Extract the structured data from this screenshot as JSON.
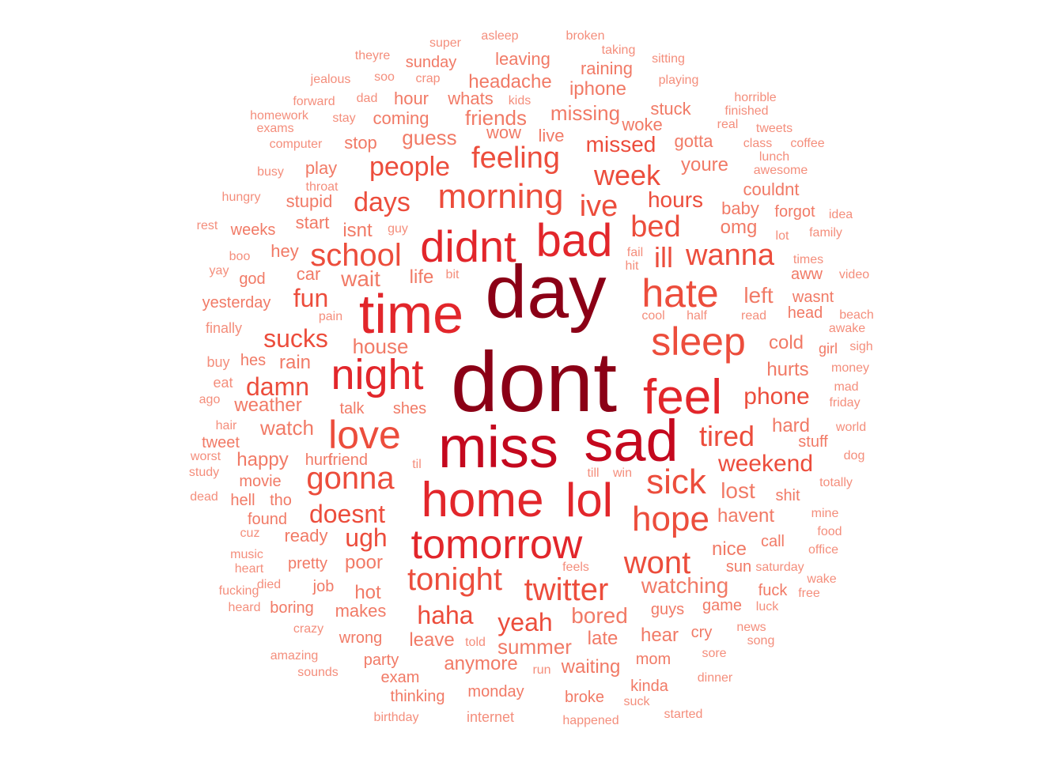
{
  "palette": {
    "t1": "#8b0016",
    "t2": "#c4081e",
    "t3": "#e2262b",
    "t4": "#ec4d3c",
    "t5": "#f17a66",
    "t6": "#f48e7c"
  },
  "words": [
    {
      "text": "dont",
      "tier": "t1"
    },
    {
      "text": "day",
      "tier": "t1"
    },
    {
      "text": "miss",
      "tier": "t2"
    },
    {
      "text": "sad",
      "tier": "t2"
    },
    {
      "text": "time",
      "tier": "t3"
    },
    {
      "text": "home",
      "tier": "t3"
    },
    {
      "text": "didnt",
      "tier": "t3"
    },
    {
      "text": "bad",
      "tier": "t3"
    },
    {
      "text": "night",
      "tier": "t3"
    },
    {
      "text": "feel",
      "tier": "t3"
    },
    {
      "text": "lol",
      "tier": "t3"
    },
    {
      "text": "tomorrow",
      "tier": "t3"
    },
    {
      "text": "love",
      "tier": "t4"
    },
    {
      "text": "hate",
      "tier": "t4"
    },
    {
      "text": "sleep",
      "tier": "t4"
    },
    {
      "text": "morning",
      "tier": "t4"
    },
    {
      "text": "sick",
      "tier": "t4"
    },
    {
      "text": "hope",
      "tier": "t4"
    },
    {
      "text": "gonna",
      "tier": "t4"
    },
    {
      "text": "school",
      "tier": "t4"
    },
    {
      "text": "twitter",
      "tier": "t4"
    },
    {
      "text": "tonight",
      "tier": "t4"
    },
    {
      "text": "wont",
      "tier": "t4"
    },
    {
      "text": "feeling",
      "tier": "t4"
    },
    {
      "text": "week",
      "tier": "t4"
    },
    {
      "text": "ive",
      "tier": "t4"
    },
    {
      "text": "wanna",
      "tier": "t4"
    },
    {
      "text": "ill",
      "tier": "t4"
    },
    {
      "text": "tired",
      "tier": "t4"
    },
    {
      "text": "people",
      "tier": "t4"
    },
    {
      "text": "days",
      "tier": "t4"
    },
    {
      "text": "bed",
      "tier": "t4"
    },
    {
      "text": "haha",
      "tier": "t4"
    },
    {
      "text": "yeah",
      "tier": "t4"
    },
    {
      "text": "doesnt",
      "tier": "t4"
    },
    {
      "text": "sucks",
      "tier": "t4"
    },
    {
      "text": "damn",
      "tier": "t4"
    },
    {
      "text": "ugh",
      "tier": "t4"
    },
    {
      "text": "fun",
      "tier": "t4"
    },
    {
      "text": "weekend",
      "tier": "t4"
    },
    {
      "text": "phone",
      "tier": "t4"
    },
    {
      "text": "missed",
      "tier": "t4"
    },
    {
      "text": "hours",
      "tier": "t4"
    },
    {
      "text": "watching",
      "tier": "t5"
    },
    {
      "text": "bored",
      "tier": "t5"
    },
    {
      "text": "lost",
      "tier": "t5"
    },
    {
      "text": "left",
      "tier": "t5"
    },
    {
      "text": "watch",
      "tier": "t5"
    },
    {
      "text": "summer",
      "tier": "t5"
    },
    {
      "text": "guess",
      "tier": "t5"
    },
    {
      "text": "missing",
      "tier": "t5"
    },
    {
      "text": "friends",
      "tier": "t5"
    },
    {
      "text": "headache",
      "tier": "t5"
    },
    {
      "text": "iphone",
      "tier": "t5"
    },
    {
      "text": "wait",
      "tier": "t5"
    },
    {
      "text": "isnt",
      "tier": "t5"
    },
    {
      "text": "rain",
      "tier": "t5"
    },
    {
      "text": "house",
      "tier": "t5"
    },
    {
      "text": "hurts",
      "tier": "t5"
    },
    {
      "text": "cold",
      "tier": "t5"
    },
    {
      "text": "omg",
      "tier": "t5"
    },
    {
      "text": "youre",
      "tier": "t5"
    },
    {
      "text": "havent",
      "tier": "t5"
    },
    {
      "text": "nice",
      "tier": "t5"
    },
    {
      "text": "hard",
      "tier": "t5"
    },
    {
      "text": "late",
      "tier": "t5"
    },
    {
      "text": "leave",
      "tier": "t5"
    },
    {
      "text": "anymore",
      "tier": "t5"
    },
    {
      "text": "waiting",
      "tier": "t5"
    },
    {
      "text": "hear",
      "tier": "t5"
    },
    {
      "text": "guys",
      "tier": "t5"
    },
    {
      "text": "makes",
      "tier": "t5"
    },
    {
      "text": "hot",
      "tier": "t5"
    },
    {
      "text": "poor",
      "tier": "t5"
    },
    {
      "text": "ready",
      "tier": "t5"
    },
    {
      "text": "happy",
      "tier": "t5"
    },
    {
      "text": "weather",
      "tier": "t5"
    },
    {
      "text": "life",
      "tier": "t5"
    },
    {
      "text": "car",
      "tier": "t5"
    },
    {
      "text": "hey",
      "tier": "t5"
    },
    {
      "text": "start",
      "tier": "t5"
    },
    {
      "text": "stupid",
      "tier": "t5"
    },
    {
      "text": "play",
      "tier": "t5"
    },
    {
      "text": "stop",
      "tier": "t5"
    },
    {
      "text": "coming",
      "tier": "t5"
    },
    {
      "text": "hour",
      "tier": "t5"
    },
    {
      "text": "whats",
      "tier": "t5"
    },
    {
      "text": "leaving",
      "tier": "t5"
    },
    {
      "text": "raining",
      "tier": "t5"
    },
    {
      "text": "sunday",
      "tier": "t5"
    },
    {
      "text": "live",
      "tier": "t5"
    },
    {
      "text": "wow",
      "tier": "t5"
    },
    {
      "text": "woke",
      "tier": "t5"
    },
    {
      "text": "stuck",
      "tier": "t5"
    },
    {
      "text": "gotta",
      "tier": "t5"
    },
    {
      "text": "couldnt",
      "tier": "t5"
    },
    {
      "text": "baby",
      "tier": "t5"
    },
    {
      "text": "forgot",
      "tier": "t5"
    },
    {
      "text": "aww",
      "tier": "t5"
    },
    {
      "text": "wasnt",
      "tier": "t5"
    },
    {
      "text": "head",
      "tier": "t5"
    },
    {
      "text": "girl",
      "tier": "t5"
    },
    {
      "text": "stuff",
      "tier": "t5"
    },
    {
      "text": "shit",
      "tier": "t5"
    },
    {
      "text": "call",
      "tier": "t5"
    },
    {
      "text": "sun",
      "tier": "t5"
    },
    {
      "text": "fuck",
      "tier": "t5"
    },
    {
      "text": "game",
      "tier": "t5"
    },
    {
      "text": "cry",
      "tier": "t5"
    },
    {
      "text": "mom",
      "tier": "t5"
    },
    {
      "text": "broke",
      "tier": "t5"
    },
    {
      "text": "monday",
      "tier": "t5"
    },
    {
      "text": "wrong",
      "tier": "t5"
    },
    {
      "text": "party",
      "tier": "t5"
    },
    {
      "text": "exam",
      "tier": "t5"
    },
    {
      "text": "thinking",
      "tier": "t5"
    },
    {
      "text": "kinda",
      "tier": "t5"
    },
    {
      "text": "job",
      "tier": "t5"
    },
    {
      "text": "pretty",
      "tier": "t5"
    },
    {
      "text": "boring",
      "tier": "t5"
    },
    {
      "text": "friend",
      "tier": "t5"
    },
    {
      "text": "hurt",
      "tier": "t5"
    },
    {
      "text": "movie",
      "tier": "t5"
    },
    {
      "text": "tho",
      "tier": "t5"
    },
    {
      "text": "found",
      "tier": "t5"
    },
    {
      "text": "yesterday",
      "tier": "t5"
    },
    {
      "text": "weeks",
      "tier": "t5"
    },
    {
      "text": "god",
      "tier": "t5"
    },
    {
      "text": "hes",
      "tier": "t5"
    },
    {
      "text": "tweet",
      "tier": "t5"
    },
    {
      "text": "hell",
      "tier": "t5"
    },
    {
      "text": "talk",
      "tier": "t5"
    },
    {
      "text": "shes",
      "tier": "t5"
    },
    {
      "text": "finally",
      "tier": "t6"
    },
    {
      "text": "buy",
      "tier": "t6"
    },
    {
      "text": "eat",
      "tier": "t6"
    },
    {
      "text": "ago",
      "tier": "t6"
    },
    {
      "text": "hair",
      "tier": "t6"
    },
    {
      "text": "worst",
      "tier": "t6"
    },
    {
      "text": "study",
      "tier": "t6"
    },
    {
      "text": "dead",
      "tier": "t6"
    },
    {
      "text": "cuz",
      "tier": "t6"
    },
    {
      "text": "music",
      "tier": "t6"
    },
    {
      "text": "heart",
      "tier": "t6"
    },
    {
      "text": "fucking",
      "tier": "t6"
    },
    {
      "text": "heard",
      "tier": "t6"
    },
    {
      "text": "died",
      "tier": "t6"
    },
    {
      "text": "crazy",
      "tier": "t6"
    },
    {
      "text": "amazing",
      "tier": "t6"
    },
    {
      "text": "sounds",
      "tier": "t6"
    },
    {
      "text": "birthday",
      "tier": "t6"
    },
    {
      "text": "internet",
      "tier": "t6"
    },
    {
      "text": "happened",
      "tier": "t6"
    },
    {
      "text": "started",
      "tier": "t6"
    },
    {
      "text": "suck",
      "tier": "t6"
    },
    {
      "text": "dinner",
      "tier": "t6"
    },
    {
      "text": "run",
      "tier": "t6"
    },
    {
      "text": "told",
      "tier": "t6"
    },
    {
      "text": "sore",
      "tier": "t6"
    },
    {
      "text": "news",
      "tier": "t6"
    },
    {
      "text": "song",
      "tier": "t6"
    },
    {
      "text": "luck",
      "tier": "t6"
    },
    {
      "text": "free",
      "tier": "t6"
    },
    {
      "text": "wake",
      "tier": "t6"
    },
    {
      "text": "office",
      "tier": "t6"
    },
    {
      "text": "saturday",
      "tier": "t6"
    },
    {
      "text": "food",
      "tier": "t6"
    },
    {
      "text": "mine",
      "tier": "t6"
    },
    {
      "text": "totally",
      "tier": "t6"
    },
    {
      "text": "dog",
      "tier": "t6"
    },
    {
      "text": "world",
      "tier": "t6"
    },
    {
      "text": "friday",
      "tier": "t6"
    },
    {
      "text": "mad",
      "tier": "t6"
    },
    {
      "text": "money",
      "tier": "t6"
    },
    {
      "text": "sigh",
      "tier": "t6"
    },
    {
      "text": "awake",
      "tier": "t6"
    },
    {
      "text": "beach",
      "tier": "t6"
    },
    {
      "text": "video",
      "tier": "t6"
    },
    {
      "text": "times",
      "tier": "t6"
    },
    {
      "text": "lot",
      "tier": "t6"
    },
    {
      "text": "family",
      "tier": "t6"
    },
    {
      "text": "idea",
      "tier": "t6"
    },
    {
      "text": "lunch",
      "tier": "t6"
    },
    {
      "text": "awesome",
      "tier": "t6"
    },
    {
      "text": "class",
      "tier": "t6"
    },
    {
      "text": "coffee",
      "tier": "t6"
    },
    {
      "text": "tweets",
      "tier": "t6"
    },
    {
      "text": "real",
      "tier": "t6"
    },
    {
      "text": "finished",
      "tier": "t6"
    },
    {
      "text": "horrible",
      "tier": "t6"
    },
    {
      "text": "playing",
      "tier": "t6"
    },
    {
      "text": "sitting",
      "tier": "t6"
    },
    {
      "text": "taking",
      "tier": "t6"
    },
    {
      "text": "broken",
      "tier": "t6"
    },
    {
      "text": "asleep",
      "tier": "t6"
    },
    {
      "text": "super",
      "tier": "t6"
    },
    {
      "text": "theyre",
      "tier": "t6"
    },
    {
      "text": "jealous",
      "tier": "t6"
    },
    {
      "text": "soo",
      "tier": "t6"
    },
    {
      "text": "crap",
      "tier": "t6"
    },
    {
      "text": "kids",
      "tier": "t6"
    },
    {
      "text": "dad",
      "tier": "t6"
    },
    {
      "text": "forward",
      "tier": "t6"
    },
    {
      "text": "homework",
      "tier": "t6"
    },
    {
      "text": "exams",
      "tier": "t6"
    },
    {
      "text": "stay",
      "tier": "t6"
    },
    {
      "text": "computer",
      "tier": "t6"
    },
    {
      "text": "busy",
      "tier": "t6"
    },
    {
      "text": "throat",
      "tier": "t6"
    },
    {
      "text": "hungry",
      "tier": "t6"
    },
    {
      "text": "rest",
      "tier": "t6"
    },
    {
      "text": "guy",
      "tier": "t6"
    },
    {
      "text": "boo",
      "tier": "t6"
    },
    {
      "text": "yay",
      "tier": "t6"
    },
    {
      "text": "bit",
      "tier": "t6"
    },
    {
      "text": "pain",
      "tier": "t6"
    },
    {
      "text": "fail",
      "tier": "t6"
    },
    {
      "text": "hit",
      "tier": "t6"
    },
    {
      "text": "cool",
      "tier": "t6"
    },
    {
      "text": "half",
      "tier": "t6"
    },
    {
      "text": "read",
      "tier": "t6"
    },
    {
      "text": "til",
      "tier": "t6"
    },
    {
      "text": "till",
      "tier": "t6"
    },
    {
      "text": "win",
      "tier": "t6"
    },
    {
      "text": "feels",
      "tier": "t6"
    }
  ]
}
